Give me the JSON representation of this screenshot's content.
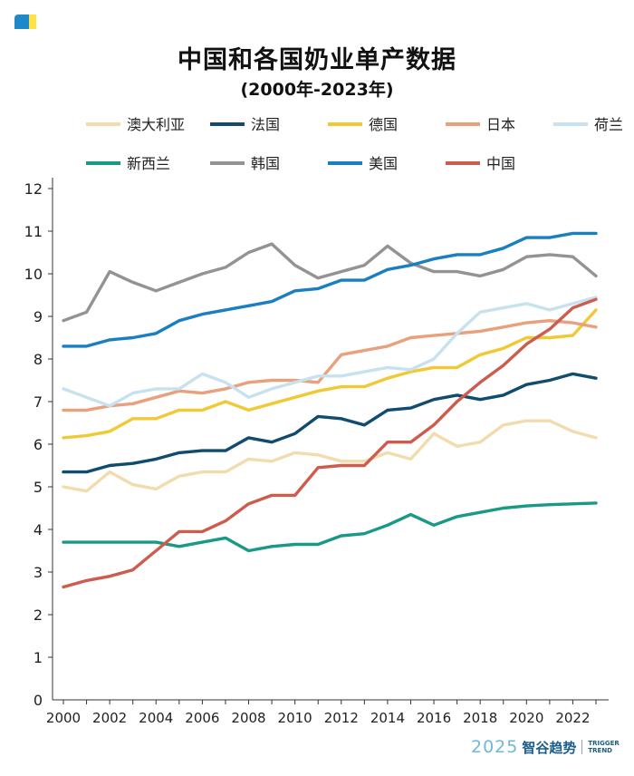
{
  "header": {
    "title": "中国和各国奶业单产数据",
    "subtitle": "(2000年-2023年)"
  },
  "brand": {
    "year": "2025",
    "name": "智谷趋势",
    "en_line1": "TRIGGER",
    "en_line2": "TREND"
  },
  "chart_data": {
    "type": "line",
    "title": "中国和各国奶业单产数据",
    "subtitle": "(2000年-2023年)",
    "xlabel": "",
    "ylabel": "",
    "x": [
      2000,
      2001,
      2002,
      2003,
      2004,
      2005,
      2006,
      2007,
      2008,
      2009,
      2010,
      2011,
      2012,
      2013,
      2014,
      2015,
      2016,
      2017,
      2018,
      2019,
      2020,
      2021,
      2022,
      2023
    ],
    "x_ticks": [
      "2000",
      "2002",
      "2004",
      "2006",
      "2008",
      "2010",
      "2012",
      "2014",
      "2016",
      "2018",
      "2020",
      "2022"
    ],
    "y_ticks": [
      "0",
      "1",
      "2",
      "3",
      "4",
      "5",
      "6",
      "7",
      "8",
      "9",
      "10",
      "11",
      "12"
    ],
    "ylim": [
      0,
      12
    ],
    "grid": false,
    "legend_position": "top",
    "series": [
      {
        "name": "澳大利亚",
        "color": "#f2dcae",
        "values": [
          5.0,
          4.9,
          5.35,
          5.05,
          4.95,
          5.25,
          5.35,
          5.35,
          5.65,
          5.6,
          5.8,
          5.75,
          5.6,
          5.6,
          5.8,
          5.65,
          6.25,
          5.95,
          6.05,
          6.45,
          6.55,
          6.55,
          6.3,
          6.15
        ]
      },
      {
        "name": "法国",
        "color": "#0f4c6e",
        "values": [
          5.35,
          5.35,
          5.5,
          5.55,
          5.65,
          5.8,
          5.85,
          5.85,
          6.15,
          6.05,
          6.25,
          6.65,
          6.6,
          6.45,
          6.8,
          6.85,
          7.05,
          7.15,
          7.05,
          7.15,
          7.4,
          7.5,
          7.65,
          7.55
        ]
      },
      {
        "name": "德国",
        "color": "#f0c935",
        "values": [
          6.15,
          6.2,
          6.3,
          6.6,
          6.6,
          6.8,
          6.8,
          7.0,
          6.8,
          6.95,
          7.1,
          7.25,
          7.35,
          7.35,
          7.55,
          7.7,
          7.8,
          7.8,
          8.1,
          8.25,
          8.5,
          8.5,
          8.55,
          9.15
        ]
      },
      {
        "name": "日本",
        "color": "#e9a07c",
        "values": [
          6.8,
          6.8,
          6.9,
          6.95,
          7.1,
          7.25,
          7.2,
          7.3,
          7.45,
          7.5,
          7.5,
          7.45,
          8.1,
          8.2,
          8.3,
          8.5,
          8.55,
          8.6,
          8.65,
          8.75,
          8.85,
          8.9,
          8.85,
          8.75
        ]
      },
      {
        "name": "荷兰",
        "color": "#c7e2ee",
        "values": [
          7.3,
          7.1,
          6.9,
          7.2,
          7.3,
          7.3,
          7.65,
          7.45,
          7.1,
          7.3,
          7.45,
          7.6,
          7.6,
          7.7,
          7.8,
          7.75,
          8.0,
          8.6,
          9.1,
          9.2,
          9.3,
          9.15,
          9.3,
          9.45
        ]
      },
      {
        "name": "新西兰",
        "color": "#1a9a86",
        "values": [
          3.7,
          3.7,
          3.7,
          3.7,
          3.7,
          3.6,
          3.7,
          3.8,
          3.5,
          3.6,
          3.65,
          3.65,
          3.85,
          3.9,
          4.1,
          4.35,
          4.1,
          4.3,
          4.4,
          4.5,
          4.55,
          4.58,
          4.6,
          4.62
        ]
      },
      {
        "name": "韩国",
        "color": "#939393",
        "values": [
          8.9,
          9.1,
          10.05,
          9.8,
          9.6,
          9.8,
          10.0,
          10.15,
          10.5,
          10.7,
          10.2,
          9.9,
          10.05,
          10.2,
          10.65,
          10.25,
          10.05,
          10.05,
          9.95,
          10.1,
          10.4,
          10.45,
          10.4,
          9.95
        ]
      },
      {
        "name": "美国",
        "color": "#1a7fc1",
        "values": [
          8.3,
          8.3,
          8.45,
          8.5,
          8.6,
          8.9,
          9.05,
          9.15,
          9.25,
          9.35,
          9.6,
          9.65,
          9.85,
          9.85,
          10.1,
          10.2,
          10.35,
          10.45,
          10.45,
          10.6,
          10.85,
          10.85,
          10.95,
          10.95
        ]
      },
      {
        "name": "中国",
        "color": "#cd5b4e",
        "values": [
          2.65,
          2.8,
          2.9,
          3.05,
          3.5,
          3.95,
          3.95,
          4.2,
          4.6,
          4.8,
          4.8,
          5.45,
          5.5,
          5.5,
          6.05,
          6.05,
          6.45,
          7.0,
          7.45,
          7.85,
          8.35,
          8.7,
          9.2,
          9.4
        ]
      }
    ]
  }
}
